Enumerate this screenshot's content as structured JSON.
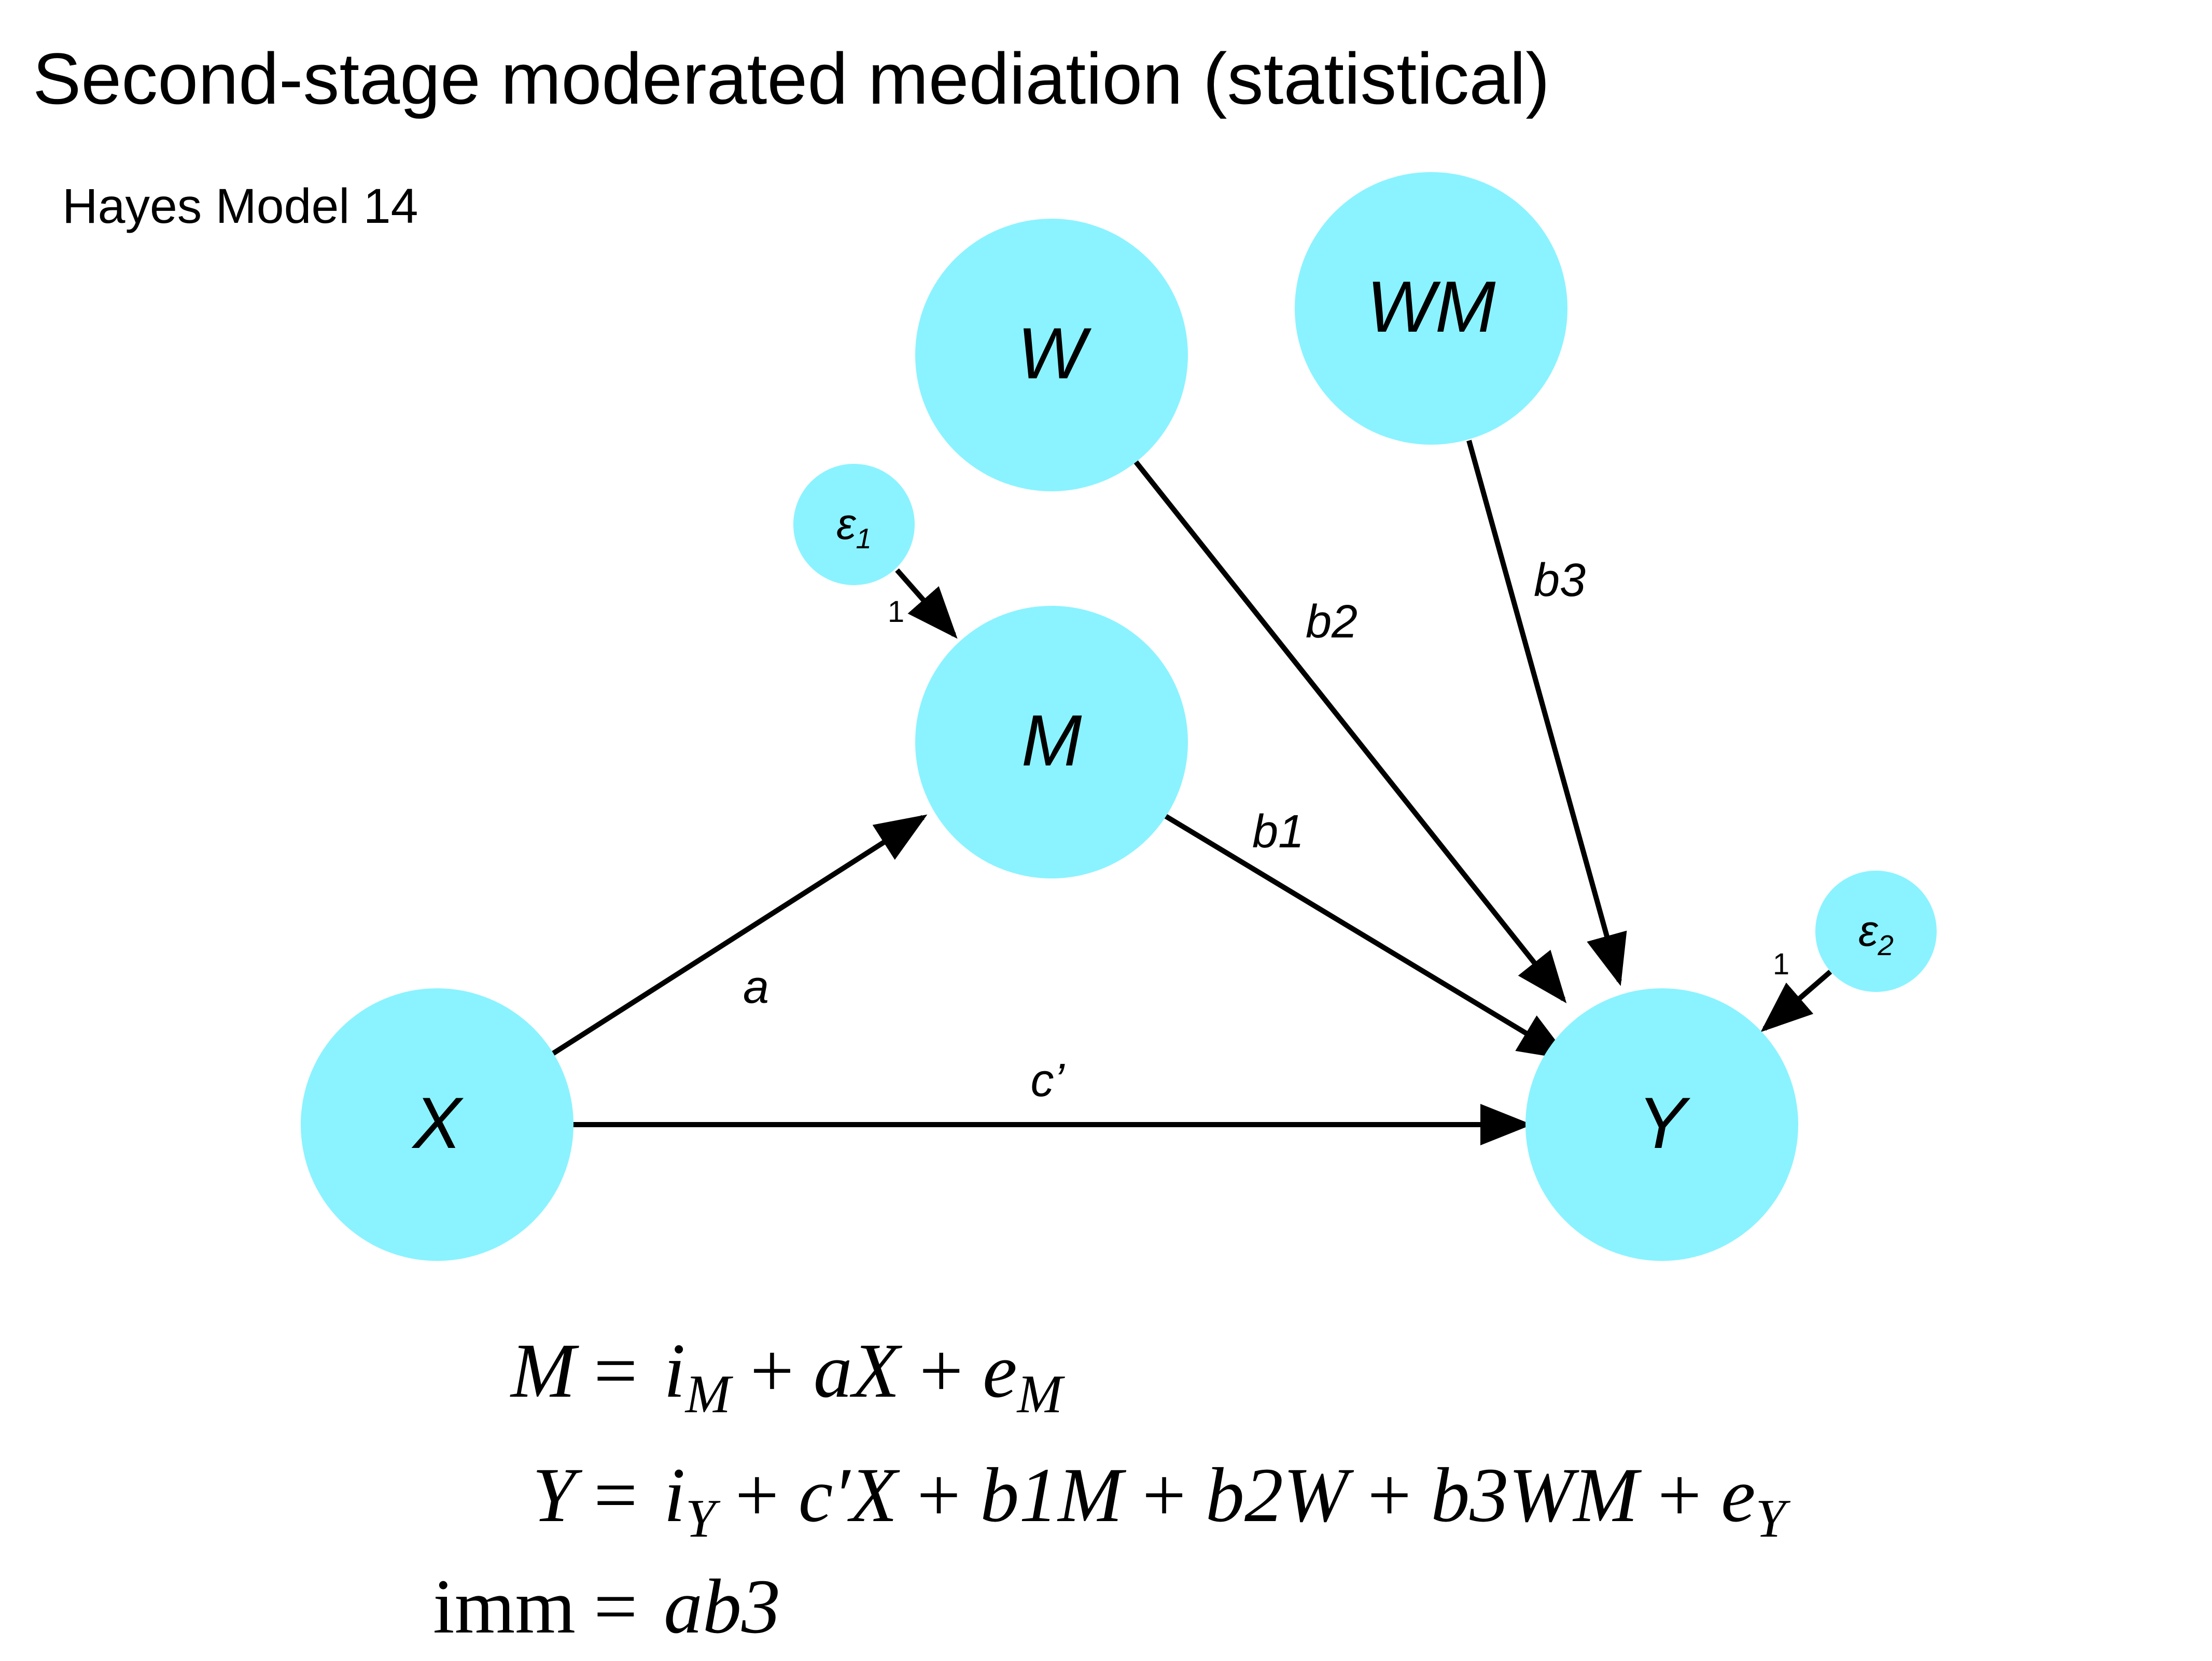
{
  "title": "Second-stage moderated mediation (statistical)",
  "subtitle": "Hayes Model 14",
  "colors": {
    "node_fill": "#8AF3FF",
    "edge": "#000000",
    "text": "#000000",
    "background": "#ffffff"
  },
  "nodes": [
    {
      "id": "X",
      "label": "X",
      "kind": "variable"
    },
    {
      "id": "M",
      "label": "M",
      "kind": "variable"
    },
    {
      "id": "W",
      "label": "W",
      "kind": "variable"
    },
    {
      "id": "WM",
      "label": "WM",
      "kind": "variable"
    },
    {
      "id": "Y",
      "label": "Y",
      "kind": "variable"
    },
    {
      "id": "e1",
      "label": "ε",
      "subscript": "1",
      "kind": "error"
    },
    {
      "id": "e2",
      "label": "ε",
      "subscript": "2",
      "kind": "error"
    }
  ],
  "edges": [
    {
      "id": "a",
      "from": "X",
      "to": "M",
      "label": "a"
    },
    {
      "id": "b1",
      "from": "M",
      "to": "Y",
      "label": "b1"
    },
    {
      "id": "b2",
      "from": "W",
      "to": "Y",
      "label": "b2"
    },
    {
      "id": "b3",
      "from": "WM",
      "to": "Y",
      "label": "b3"
    },
    {
      "id": "c",
      "from": "X",
      "to": "Y",
      "label": "c’"
    },
    {
      "id": "e1path",
      "from": "e1",
      "to": "M",
      "label": "1"
    },
    {
      "id": "e2path",
      "from": "e2",
      "to": "Y",
      "label": "1"
    }
  ],
  "equations": {
    "m": {
      "lhs": "M",
      "rhs": [
        {
          "t": "i",
          "sub": "M"
        },
        {
          "op": "+"
        },
        {
          "t": "aX"
        },
        {
          "op": "+"
        },
        {
          "t": "e",
          "sub": "M"
        }
      ]
    },
    "y": {
      "lhs": "Y",
      "rhs": [
        {
          "t": "i",
          "sub": "Y"
        },
        {
          "op": "+"
        },
        {
          "t": "c′X"
        },
        {
          "op": "+"
        },
        {
          "t": "b1M"
        },
        {
          "op": "+"
        },
        {
          "t": "b2W"
        },
        {
          "op": "+"
        },
        {
          "t": "b3WM"
        },
        {
          "op": "+"
        },
        {
          "t": "e",
          "sub": "Y"
        }
      ]
    },
    "imm": {
      "lhs": "imm",
      "rhs": [
        {
          "t": "ab3"
        }
      ]
    }
  }
}
